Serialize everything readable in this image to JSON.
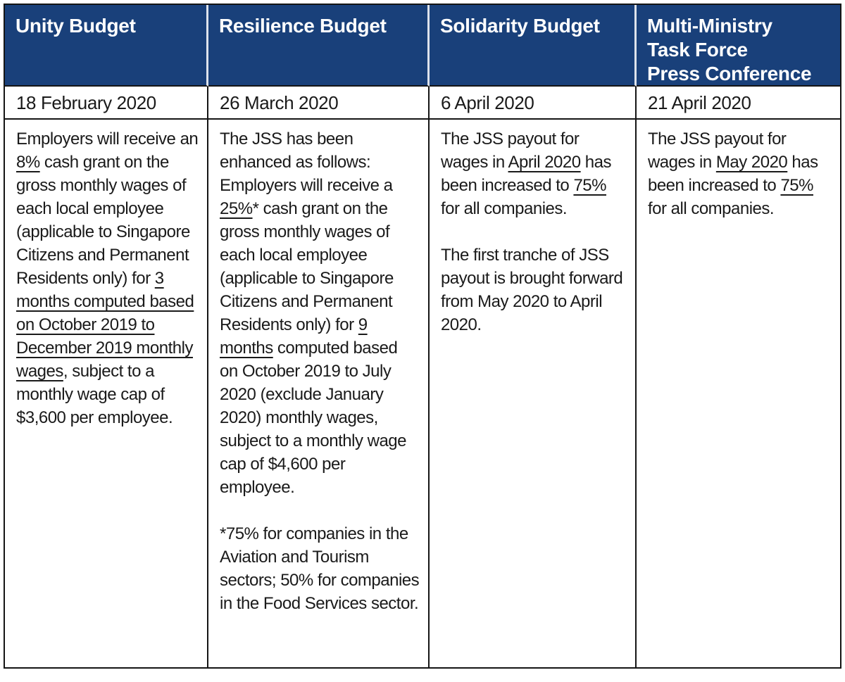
{
  "colors": {
    "header_bg": "#19407A",
    "header_text": "#FFFFFF",
    "body_text": "#1A1A1A",
    "table_border": "#151515",
    "header_divider": "#DDE3EC"
  },
  "table": {
    "columns": [
      {
        "header": "Unity Budget",
        "date": "18 February 2020",
        "paragraphs": [
          [
            {
              "t": "Employers will receive an "
            },
            {
              "t": "8%",
              "u": true
            },
            {
              "t": " cash grant on the gross monthly wages of each local employee (applicable to Singapore Citizens and Permanent Residents only) for "
            },
            {
              "t": "3 months computed based on October 2019 to December 2019 monthly wages",
              "u": true
            },
            {
              "t": ", subject to a monthly wage cap of $3,600 per employee."
            }
          ]
        ]
      },
      {
        "header": "Resilience Budget",
        "date": "26 March 2020",
        "paragraphs": [
          [
            {
              "t": "The JSS has been enhanced as follows: Employers will receive a "
            },
            {
              "t": "25%",
              "u": true
            },
            {
              "t": "* cash grant on the gross monthly wages of each local employee (applicable to Singapore Citizens and Permanent Residents only) for "
            },
            {
              "t": "9 months",
              "u": true
            },
            {
              "t": " computed based on October 2019 to July 2020 (exclude January 2020) monthly wages, subject to a monthly wage cap of $4,600 per employee."
            }
          ],
          [
            {
              "t": "*75% for companies in the Aviation and Tourism sectors; 50% for companies in the Food Services sector."
            }
          ]
        ]
      },
      {
        "header": "Solidarity Budget",
        "date": "6 April 2020",
        "paragraphs": [
          [
            {
              "t": "The JSS payout for wages in "
            },
            {
              "t": "April 2020",
              "u": true
            },
            {
              "t": " has been increased to "
            },
            {
              "t": "75%",
              "u": true
            },
            {
              "t": " for all companies."
            }
          ],
          [
            {
              "t": "The first tranche of JSS payout is brought forward from May 2020 to April 2020."
            }
          ]
        ]
      },
      {
        "header": "Multi-Ministry\nTask Force\nPress Conference",
        "date": "21 April 2020",
        "paragraphs": [
          [
            {
              "t": "The JSS payout for wages in "
            },
            {
              "t": "May 2020",
              "u": true
            },
            {
              "t": " has been increased to "
            },
            {
              "t": "75%",
              "u": true
            },
            {
              "t": " for all companies."
            }
          ]
        ]
      }
    ]
  }
}
